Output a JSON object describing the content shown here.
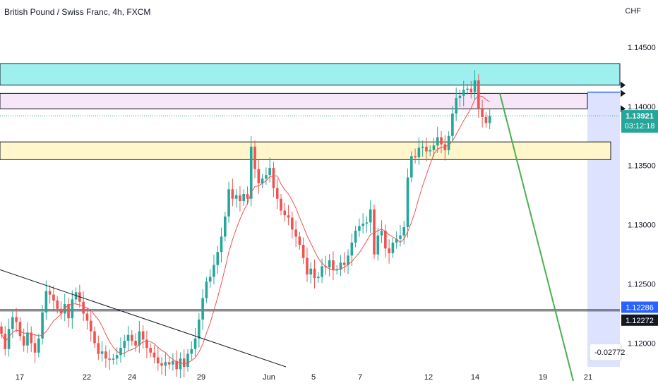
{
  "chart_title": "British Pound / Swiss Franc, 4h, FXCM",
  "currency": "CHF",
  "colors": {
    "up": "#26a69a",
    "down": "#ef5350",
    "ma": "#ef5350",
    "zone_cyan": "#9ef0ef",
    "zone_pink": "#f6e6f7",
    "zone_yellow": "#fff6cc",
    "projection": "#dde3ff",
    "green_line": "#4caf50",
    "price_label": "#26a69a",
    "blue_label": "#2962ff",
    "black_label": "#131722"
  },
  "chart_data": {
    "type": "candlestick",
    "ylim": [
      1.118,
      1.1472
    ],
    "y_ticks": [
      "1.14500",
      "1.14000",
      "1.13500",
      "1.13000",
      "1.12500",
      "1.12000"
    ],
    "x_ticks": [
      "17",
      "22",
      "24",
      "29",
      "Jun",
      "5",
      "7",
      "12",
      "14",
      "19",
      "21"
    ],
    "price_label": "1.13921",
    "countdown": "03:12:18",
    "blue_level_label": "1.12286",
    "black_level_label": "1.12272",
    "measure_label": "-0.02772",
    "levels": {
      "cyan_zone": [
        1.1418,
        1.1436
      ],
      "pink_zone": [
        1.1398,
        1.1411
      ],
      "yellow_zone": [
        1.1355,
        1.137
      ],
      "blue_line": 1.12286,
      "black_line": 1.12272,
      "price_line": 1.13921
    },
    "closes": [
      1.1208,
      1.1195,
      1.1212,
      1.1222,
      1.1218,
      1.1206,
      1.1198,
      1.1209,
      1.12,
      1.1192,
      1.1204,
      1.1226,
      1.1244,
      1.1241,
      1.1236,
      1.1229,
      1.1225,
      1.1233,
      1.1221,
      1.1237,
      1.1243,
      1.1235,
      1.1225,
      1.1219,
      1.121,
      1.12,
      1.1191,
      1.1193,
      1.1187,
      1.1186,
      1.1187,
      1.119,
      1.1196,
      1.1202,
      1.1207,
      1.1202,
      1.1198,
      1.121,
      1.1203,
      1.1196,
      1.1192,
      1.1188,
      1.1183,
      1.1181,
      1.1184,
      1.1182,
      1.1185,
      1.1178,
      1.1187,
      1.118,
      1.1191,
      1.1195,
      1.1204,
      1.122,
      1.1238,
      1.1252,
      1.1256,
      1.1266,
      1.1277,
      1.129,
      1.1307,
      1.133,
      1.1322,
      1.1325,
      1.132,
      1.1326,
      1.1322,
      1.1366,
      1.1347,
      1.1335,
      1.1339,
      1.1342,
      1.1348,
      1.1331,
      1.1322,
      1.1312,
      1.1308,
      1.1306,
      1.1296,
      1.129,
      1.1283,
      1.1272,
      1.1258,
      1.1263,
      1.1255,
      1.1256,
      1.1265,
      1.1264,
      1.127,
      1.1262,
      1.1262,
      1.1268,
      1.1266,
      1.1274,
      1.1285,
      1.1295,
      1.1299,
      1.1301,
      1.1302,
      1.1313,
      1.1275,
      1.1291,
      1.1295,
      1.128,
      1.1276,
      1.1285,
      1.1288,
      1.1291,
      1.1298,
      1.134,
      1.1358,
      1.1357,
      1.1365,
      1.1366,
      1.1362,
      1.1363,
      1.1367,
      1.1374,
      1.1368,
      1.1363,
      1.1375,
      1.1394,
      1.1407,
      1.1409,
      1.1414,
      1.1415,
      1.1412,
      1.1422,
      1.1398,
      1.1391,
      1.1386,
      1.1392
    ]
  }
}
